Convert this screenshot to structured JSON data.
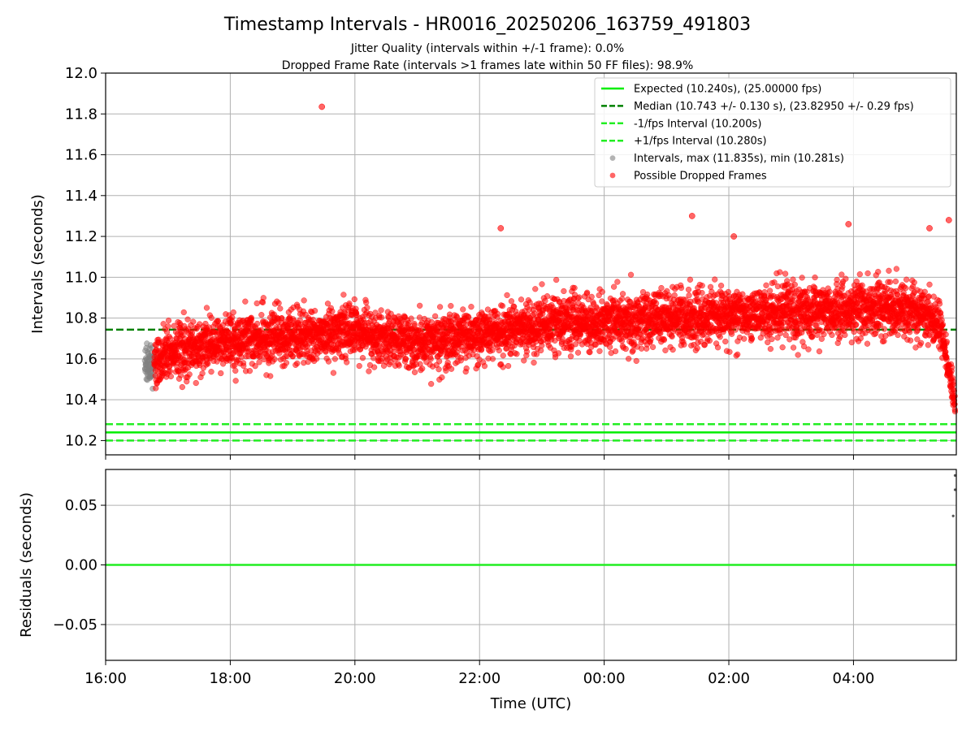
{
  "title": "Timestamp Intervals - HR0016_20250206_163759_491803",
  "subtitle_1": "Jitter Quality (intervals within +/-1 frame): 0.0%",
  "subtitle_2": "Dropped Frame Rate (intervals >1 frames late within 50 FF files): 98.9%",
  "colors": {
    "expected": "#00ee00",
    "median": "#008000",
    "fps_bounds": "#22ee22",
    "intervals": "#808080",
    "dropped": "#ff0000",
    "grid": "#b0b0b0",
    "residual_line": "#22ee22"
  },
  "chart_data": [
    {
      "type": "scatter",
      "panel": "top",
      "ylabel": "Intervals (seconds)",
      "xlabel": "",
      "x_ticks": [
        "16:00",
        "18:00",
        "20:00",
        "22:00",
        "00:00",
        "02:00",
        "04:00"
      ],
      "x_tick_hours": [
        16,
        18,
        20,
        22,
        24,
        26,
        28
      ],
      "xlim_hours": [
        16,
        29.65
      ],
      "ylim": [
        10.13,
        12.0
      ],
      "y_ticks": [
        "10.2",
        "10.4",
        "10.6",
        "10.8",
        "11.0",
        "11.2",
        "11.4",
        "11.6",
        "11.8",
        "12.0"
      ],
      "grid": true,
      "legend_position": "top-right",
      "reference_lines": [
        {
          "name": "Expected (10.240s), (25.00000 fps)",
          "y": 10.24,
          "style": "solid",
          "color_key": "expected"
        },
        {
          "name": "Median (10.743 +/- 0.130 s), (23.82950 +/- 0.29 fps)",
          "y": 10.743,
          "style": "dashed",
          "color_key": "median"
        },
        {
          "name": "-1/fps Interval (10.200s)",
          "y": 10.2,
          "style": "dashed",
          "color_key": "fps_bounds"
        },
        {
          "name": "+1/fps Interval (10.280s)",
          "y": 10.28,
          "style": "dashed",
          "color_key": "fps_bounds"
        }
      ],
      "scatter_series": [
        {
          "name": "Intervals, max (11.835s), min (10.281s)",
          "color_key": "intervals"
        },
        {
          "name": "Possible Dropped Frames",
          "color_key": "dropped"
        }
      ],
      "trend": {
        "start_hour": 16.63,
        "end_hour": 29.63,
        "knots_hour": [
          16.7,
          17.0,
          18.0,
          20.0,
          21.0,
          22.0,
          23.0,
          24.0,
          26.0,
          27.5,
          28.5,
          29.1,
          29.4,
          29.63
        ],
        "knots_value": [
          10.57,
          10.63,
          10.69,
          10.73,
          10.68,
          10.72,
          10.77,
          10.79,
          10.81,
          10.84,
          10.85,
          10.83,
          10.76,
          10.38
        ],
        "spread": 0.11,
        "samples": 5200
      },
      "outliers": [
        {
          "x_hour": 19.47,
          "y": 11.835
        },
        {
          "x_hour": 25.41,
          "y": 11.3
        },
        {
          "x_hour": 29.53,
          "y": 11.28
        },
        {
          "x_hour": 22.34,
          "y": 11.24
        },
        {
          "x_hour": 27.92,
          "y": 11.26
        },
        {
          "x_hour": 29.22,
          "y": 11.24
        },
        {
          "x_hour": 26.08,
          "y": 11.2
        }
      ]
    },
    {
      "type": "scatter",
      "panel": "bottom",
      "ylabel": "Residuals (seconds)",
      "xlabel": "Time (UTC)",
      "x_ticks": [
        "16:00",
        "18:00",
        "20:00",
        "22:00",
        "00:00",
        "02:00",
        "04:00"
      ],
      "x_tick_hours": [
        16,
        18,
        20,
        22,
        24,
        26,
        28
      ],
      "xlim_hours": [
        16,
        29.65
      ],
      "ylim": [
        -0.08,
        0.08
      ],
      "y_ticks": [
        "−0.05",
        "0.00",
        "0.05"
      ],
      "y_tick_values": [
        -0.05,
        0.0,
        0.05
      ],
      "grid": true,
      "zero_line": 0.0,
      "points": [
        {
          "x_hour": 29.63,
          "y": 0.075
        },
        {
          "x_hour": 29.63,
          "y": 0.063
        },
        {
          "x_hour": 29.6,
          "y": 0.041
        }
      ]
    }
  ]
}
